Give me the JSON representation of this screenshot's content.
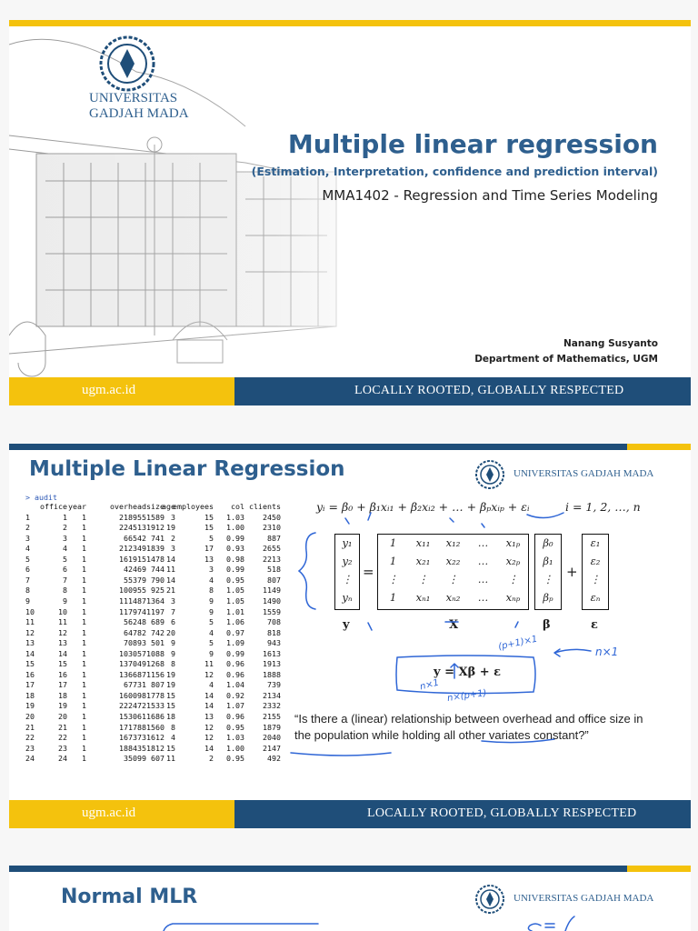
{
  "slide1": {
    "university": [
      "UNIVERSITAS",
      "GADJAH MADA"
    ],
    "title": "Multiple linear regression",
    "subtitle": "(Estimation, Interpretation,  confidence and prediction interval)",
    "course": "MMA1402 - Regression and Time Series Modeling",
    "author": "Nanang Susyanto",
    "department": "Department of Mathematics, UGM",
    "footer_left": "ugm.ac.id",
    "footer_right": "LOCALLY ROOTED, GLOBALLY RESPECTED"
  },
  "slide2": {
    "title": "Multiple Linear Regression",
    "university": "UNIVERSITAS GADJAH MADA",
    "console": {
      "command": "> audit",
      "columns": [
        "office",
        "year",
        "overhead",
        "size",
        "age",
        "employees",
        "col",
        "clients"
      ],
      "rows": [
        [
          "1",
          "1",
          "1",
          "218955",
          "1589",
          "3",
          "15",
          "1.03",
          "2450"
        ],
        [
          "2",
          "2",
          "1",
          "224513",
          "1912",
          "19",
          "15",
          "1.00",
          "2310"
        ],
        [
          "3",
          "3",
          "1",
          "66542",
          "741",
          "2",
          "5",
          "0.99",
          "887"
        ],
        [
          "4",
          "4",
          "1",
          "212349",
          "1839",
          "3",
          "17",
          "0.93",
          "2655"
        ],
        [
          "5",
          "5",
          "1",
          "161915",
          "1478",
          "14",
          "13",
          "0.98",
          "2213"
        ],
        [
          "6",
          "6",
          "1",
          "42469",
          "744",
          "11",
          "3",
          "0.99",
          "518"
        ],
        [
          "7",
          "7",
          "1",
          "55379",
          "790",
          "14",
          "4",
          "0.95",
          "807"
        ],
        [
          "8",
          "8",
          "1",
          "100955",
          "925",
          "21",
          "8",
          "1.05",
          "1149"
        ],
        [
          "9",
          "9",
          "1",
          "111487",
          "1364",
          "3",
          "9",
          "1.05",
          "1490"
        ],
        [
          "10",
          "10",
          "1",
          "117974",
          "1197",
          "7",
          "9",
          "1.01",
          "1559"
        ],
        [
          "11",
          "11",
          "1",
          "56248",
          "689",
          "6",
          "5",
          "1.06",
          "708"
        ],
        [
          "12",
          "12",
          "1",
          "64782",
          "742",
          "20",
          "4",
          "0.97",
          "818"
        ],
        [
          "13",
          "13",
          "1",
          "70893",
          "501",
          "9",
          "5",
          "1.09",
          "943"
        ],
        [
          "14",
          "14",
          "1",
          "103057",
          "1088",
          "9",
          "9",
          "0.99",
          "1613"
        ],
        [
          "15",
          "15",
          "1",
          "137049",
          "1268",
          "8",
          "11",
          "0.96",
          "1913"
        ],
        [
          "16",
          "16",
          "1",
          "136687",
          "1156",
          "19",
          "12",
          "0.96",
          "1888"
        ],
        [
          "17",
          "17",
          "1",
          "67731",
          "807",
          "19",
          "4",
          "1.04",
          "739"
        ],
        [
          "18",
          "18",
          "1",
          "160098",
          "1778",
          "15",
          "14",
          "0.92",
          "2134"
        ],
        [
          "19",
          "19",
          "1",
          "222472",
          "1533",
          "15",
          "14",
          "1.07",
          "2332"
        ],
        [
          "20",
          "20",
          "1",
          "153061",
          "1686",
          "18",
          "13",
          "0.96",
          "2155"
        ],
        [
          "21",
          "21",
          "1",
          "171788",
          "1560",
          "8",
          "12",
          "0.95",
          "1879"
        ],
        [
          "22",
          "22",
          "1",
          "167373",
          "1612",
          "4",
          "12",
          "1.03",
          "2040"
        ],
        [
          "23",
          "23",
          "1",
          "188435",
          "1812",
          "15",
          "14",
          "1.00",
          "2147"
        ],
        [
          "24",
          "24",
          "1",
          "35099",
          "607",
          "11",
          "2",
          "0.95",
          "492"
        ]
      ]
    },
    "equation": "yᵢ = β₀ + β₁xᵢ₁ + β₂xᵢ₂ + … + βₚxᵢₚ + εᵢ",
    "index_range": "i = 1, 2, …, n",
    "matrix": {
      "y": [
        "y₁",
        "y₂",
        "⋮",
        "yₙ"
      ],
      "X": [
        [
          "1",
          "x₁₁",
          "x₁₂",
          "…",
          "x₁ₚ"
        ],
        [
          "1",
          "x₂₁",
          "x₂₂",
          "…",
          "x₂ₚ"
        ],
        [
          "⋮",
          "⋮",
          "⋮",
          "…",
          "⋮"
        ],
        [
          "1",
          "xₙ₁",
          "xₙ₂",
          "…",
          "xₙₚ"
        ]
      ],
      "beta": [
        "β₀",
        "β₁",
        "⋮",
        "βₚ"
      ],
      "epsilon": [
        "ε₁",
        "ε₂",
        "⋮",
        "εₙ"
      ],
      "operators": [
        "=",
        "+"
      ],
      "labels": [
        "y",
        "X",
        "β",
        "ε"
      ]
    },
    "compact_equation": "y = Xβ + ε",
    "annotations": [
      "(p+1)×1",
      "n×1",
      "n×1",
      "n×(p+1)"
    ],
    "question": "“Is there a (linear) relationship between overhead and office size in the population while holding all other variates constant?”",
    "footer_left": "ugm.ac.id",
    "footer_right": "LOCALLY ROOTED, GLOBALLY RESPECTED"
  },
  "slide3": {
    "title": "Normal MLR",
    "university": "UNIVERSITAS GADJAH MADA"
  }
}
